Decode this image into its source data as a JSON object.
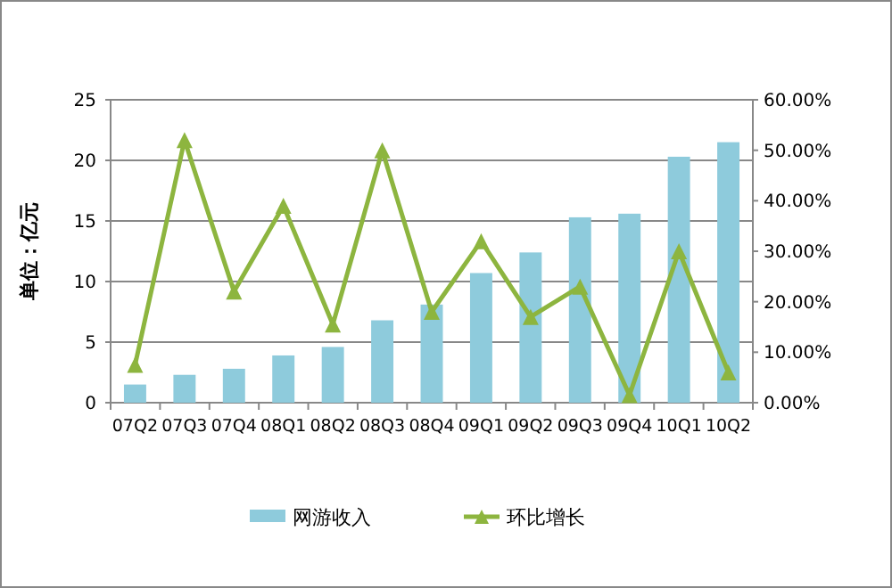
{
  "chart_data": {
    "type": "bar",
    "ylabel": "单位：亿元",
    "categories": [
      "07Q2",
      "07Q3",
      "07Q4",
      "08Q1",
      "08Q2",
      "08Q3",
      "08Q4",
      "09Q1",
      "09Q2",
      "09Q3",
      "09Q4",
      "10Q1",
      "10Q2"
    ],
    "series": [
      {
        "name": "网游收入",
        "color": "#8ecbdc",
        "values": [
          1.5,
          2.3,
          2.8,
          3.9,
          4.6,
          6.8,
          8.1,
          10.7,
          12.4,
          15.3,
          15.6,
          20.3,
          21.5
        ]
      },
      {
        "name": "环比增长",
        "type": "line",
        "axis": "y2",
        "color": "#8db53f",
        "marker": "triangle",
        "values": [
          7.5,
          52,
          22,
          39,
          15.5,
          50,
          18,
          32,
          17,
          23,
          1.5,
          30,
          6
        ]
      }
    ],
    "ylim": [
      0,
      25
    ],
    "yticks": [
      0,
      5,
      10,
      15,
      20,
      25
    ],
    "y2lim": [
      0,
      60
    ],
    "y2ticks": [
      {
        "value": 0,
        "label": "0.00%"
      },
      {
        "value": 10,
        "label": "10.00%"
      },
      {
        "value": 20,
        "label": "20.00%"
      },
      {
        "value": 30,
        "label": "30.00%"
      },
      {
        "value": 40,
        "label": "40.00%"
      },
      {
        "value": 50,
        "label": "50.00%"
      },
      {
        "value": 60,
        "label": "60.00%"
      }
    ],
    "grid": "y",
    "legend": "bottom"
  }
}
